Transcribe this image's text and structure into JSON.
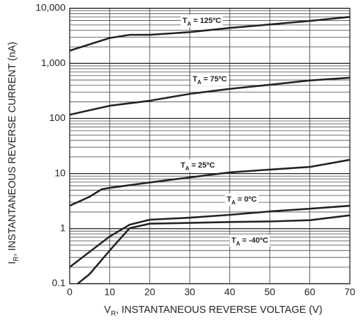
{
  "chart_data": {
    "type": "line",
    "log_y": true,
    "grid": true,
    "color": "#222222",
    "x_label": {
      "symbol": "V",
      "subscript": "R",
      "text": ", INSTANTANEOUS REVERSE VOLTAGE (V)"
    },
    "y_label": {
      "symbol": "I",
      "subscript": "R",
      "text": ", INSTANTANEOUS REVERSE CURRENT (nA)"
    },
    "series_label_symbol": "T",
    "series_label_subscript": "A",
    "xlim": [
      0,
      70
    ],
    "xticks": [
      0,
      10,
      20,
      30,
      40,
      50,
      60,
      70
    ],
    "ylim": [
      0.1,
      10000
    ],
    "yticks": [
      {
        "value": 10000,
        "label": "10,000"
      },
      {
        "value": 1000,
        "label": "1,000"
      },
      100,
      10,
      1,
      0.1
    ],
    "y_minor_ticks": [
      0.2,
      0.3,
      0.4,
      0.5,
      0.6,
      0.7,
      0.8,
      0.9,
      2,
      3,
      4,
      5,
      6,
      7,
      8,
      9,
      20,
      30,
      40,
      50,
      60,
      70,
      80,
      90,
      200,
      300,
      400,
      500,
      600,
      700,
      800,
      900,
      2000,
      3000,
      4000,
      5000,
      6000,
      7000,
      8000,
      9000
    ],
    "series": [
      {
        "name": "= 125ºC",
        "color": "#222222",
        "x": [
          0,
          10,
          15,
          20,
          30,
          40,
          50,
          60,
          70
        ],
        "values": [
          1700,
          2900,
          3300,
          3300,
          3700,
          4400,
          5100,
          5900,
          7000
        ]
      },
      {
        "name": "= 75ºC",
        "color": "#222222",
        "x": [
          0,
          10,
          20,
          30,
          40,
          50,
          60,
          70
        ],
        "values": [
          117,
          170,
          210,
          280,
          345,
          410,
          490,
          550
        ]
      },
      {
        "name": "= 25ºC",
        "color": "#222222",
        "x": [
          0,
          5,
          8,
          10,
          20,
          30,
          40,
          50,
          60,
          70
        ],
        "values": [
          2.6,
          3.8,
          5.2,
          5.5,
          6.9,
          8.5,
          10.5,
          11.8,
          13.2,
          17.8
        ]
      },
      {
        "name": "= 0ºC",
        "color": "#222222",
        "x": [
          0,
          5,
          10,
          15,
          20,
          30,
          40,
          50,
          60,
          70
        ],
        "values": [
          0.2,
          0.38,
          0.72,
          1.18,
          1.45,
          1.58,
          1.78,
          2.05,
          2.3,
          2.6
        ]
      },
      {
        "name": "= -40ºC",
        "color": "#222222",
        "x": [
          2,
          5,
          10,
          15,
          20,
          30,
          40,
          50,
          60,
          70
        ],
        "values": [
          0.1,
          0.15,
          0.4,
          1.02,
          1.23,
          1.27,
          1.32,
          1.35,
          1.42,
          1.74
        ]
      }
    ]
  }
}
